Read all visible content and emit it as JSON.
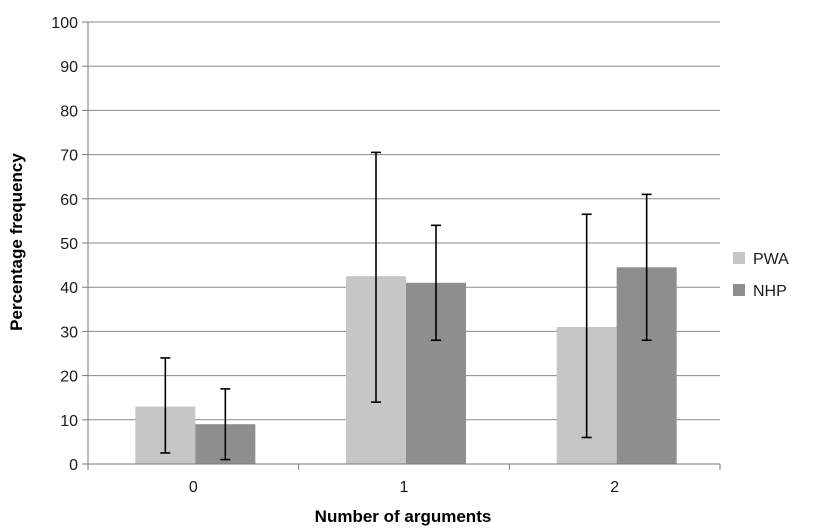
{
  "chart_data": {
    "type": "bar",
    "title": "",
    "xlabel": "Number of arguments",
    "ylabel": "Percentage frequency",
    "categories": [
      "0",
      "1",
      "2"
    ],
    "ylim": [
      0,
      100
    ],
    "yticks": [
      "0",
      "10",
      "20",
      "30",
      "40",
      "50",
      "60",
      "70",
      "80",
      "90",
      "100"
    ],
    "grid": true,
    "legend_position": "right",
    "series": [
      {
        "name": "PWA",
        "color": "#c6c6c6",
        "values": [
          13,
          42.5,
          31
        ],
        "error_low": [
          2.5,
          14,
          6
        ],
        "error_high": [
          24,
          70.5,
          56.5
        ]
      },
      {
        "name": "NHP",
        "color": "#8e8e8e",
        "values": [
          9,
          41,
          44.5
        ],
        "error_low": [
          1,
          28,
          28
        ],
        "error_high": [
          17,
          54,
          61
        ]
      }
    ]
  }
}
